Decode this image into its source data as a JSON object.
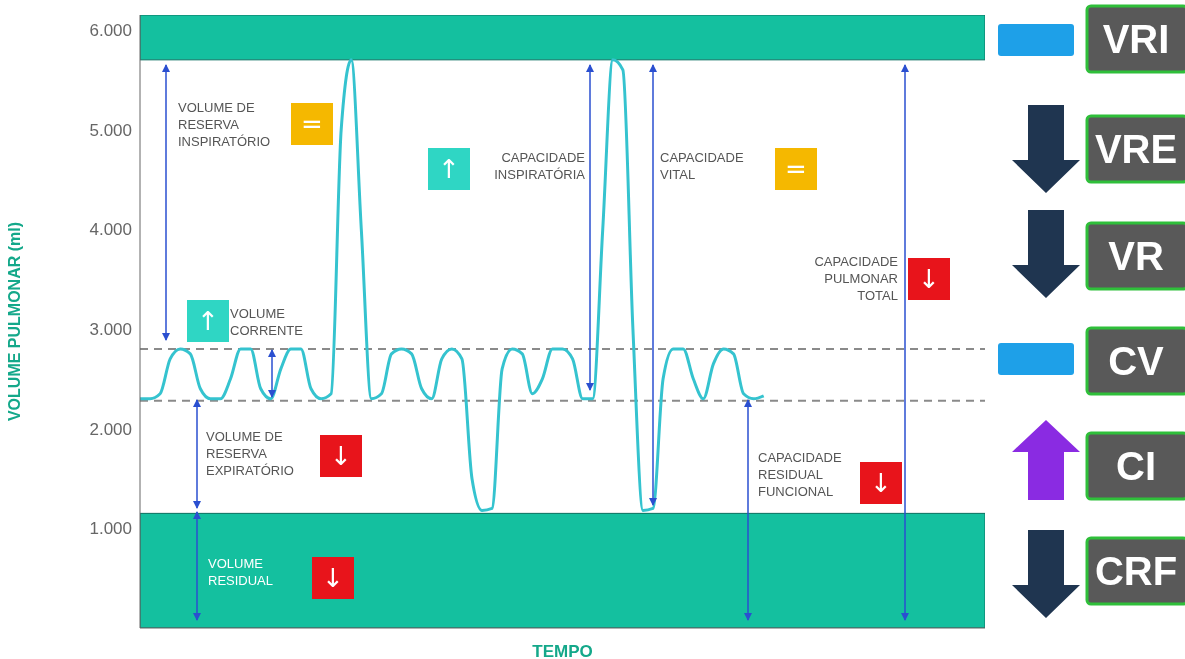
{
  "chart_data": {
    "type": "line",
    "xlabel": "TEMPO",
    "ylabel": "VOLUME PULMONAR (ml)",
    "categories": [
      null,
      null,
      null,
      null,
      null,
      null,
      null,
      null,
      null,
      null,
      null,
      null,
      null,
      null,
      null,
      null,
      null,
      null,
      null,
      null,
      null,
      null,
      null,
      null,
      null,
      null,
      null,
      null,
      null,
      null,
      null,
      null,
      null,
      null,
      null,
      null,
      null,
      null,
      null,
      null,
      null,
      null,
      null,
      null,
      null,
      null,
      null,
      null,
      null,
      null,
      null,
      null,
      null,
      null,
      null,
      null,
      null,
      null,
      null,
      null,
      null,
      null,
      null,
      null,
      null,
      null,
      null,
      null,
      null,
      null,
      null,
      null,
      null,
      null,
      null,
      null,
      null,
      null,
      null,
      null,
      null,
      null,
      null,
      null,
      null
    ],
    "series": [
      {
        "color": "#35c3cf",
        "values": [
          2300,
          2300,
          2350,
          2700,
          2800,
          2750,
          2400,
          2300,
          2300,
          2500,
          2800,
          2800,
          2400,
          2300,
          2600,
          2800,
          2800,
          2400,
          2300,
          2350,
          5000,
          5700,
          4000,
          2300,
          2350,
          2750,
          2800,
          2750,
          2400,
          2300,
          2700,
          2800,
          2700,
          1500,
          1180,
          1200,
          2600,
          2800,
          2750,
          2350,
          2500,
          2800,
          2800,
          2700,
          2300,
          2300,
          4000,
          5700,
          5600,
          3000,
          1180,
          1200,
          2500,
          2800,
          2800,
          2500,
          2300,
          2650,
          2800,
          2750,
          2350,
          2300,
          2330,
          null,
          null,
          null,
          null,
          null,
          null,
          null,
          null,
          null,
          null,
          null,
          null,
          null,
          null,
          null,
          null,
          null,
          null,
          null,
          null,
          null,
          null
        ]
      }
    ],
    "ylim": [
      0,
      6150
    ],
    "yticks": [
      {
        "value": 1000,
        "label": "1.000"
      },
      {
        "value": 2000,
        "label": "2.000"
      },
      {
        "value": 3000,
        "label": "3.000"
      },
      {
        "value": 4000,
        "label": "4.000"
      },
      {
        "value": 5000,
        "label": "5.000"
      },
      {
        "value": 6000,
        "label": "6.000"
      }
    ],
    "bands": [
      {
        "axis": "y",
        "from": 5700,
        "to": 6150,
        "color": "#14c09f"
      },
      {
        "axis": "y",
        "from": 0,
        "to": 1150,
        "color": "#14c09f"
      }
    ],
    "ref_lines": [
      {
        "axis": "y",
        "value": 2800,
        "color": "#8a8a8a",
        "line_style": "dashed"
      },
      {
        "axis": "y",
        "value": 2280,
        "color": "#8a8a8a",
        "line_style": "dashed"
      }
    ],
    "grid": false,
    "annotations": [
      "VOLUME DE\nRESERVA\nINSPIRATÓRIO",
      "=",
      "VOLUME\nCORRENTE",
      "↑",
      "CAPACIDADE\nINSPIRATÓRIA",
      "↑",
      "CAPACIDADE\nVITAL",
      "=",
      "CAPACIDADE\nPULMONAR\nTOTAL",
      "↓",
      "VOLUME DE\nRESERVA\nEXPIRATÓRIO",
      "↓",
      "CAPACIDADE\nRESIDUAL\nFUNCIONAL",
      "↓",
      "VOLUME\nRESIDUAL",
      "↓",
      "VRI",
      "VRE",
      "VR",
      "CV",
      "CI",
      "CRF"
    ]
  }
}
